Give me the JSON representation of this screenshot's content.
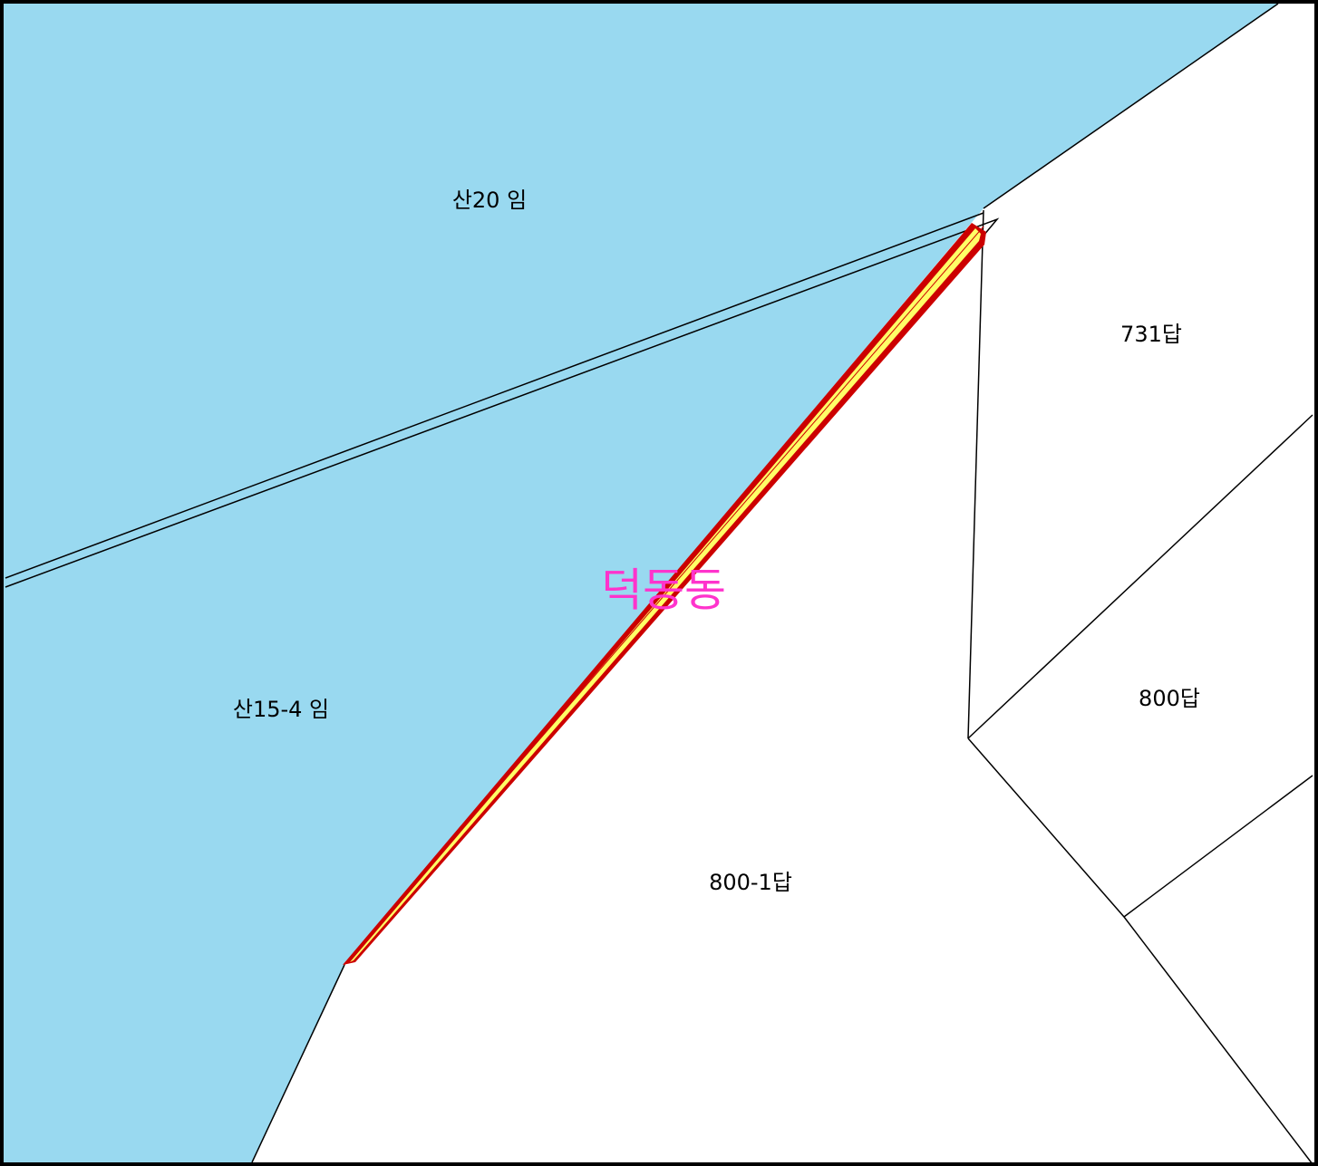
{
  "map": {
    "district": "덕동동",
    "parcels": [
      {
        "label": "산20 임"
      },
      {
        "label": "731답"
      },
      {
        "label": "산15-4 임"
      },
      {
        "label": "800답"
      },
      {
        "label": "800-1답"
      }
    ]
  }
}
